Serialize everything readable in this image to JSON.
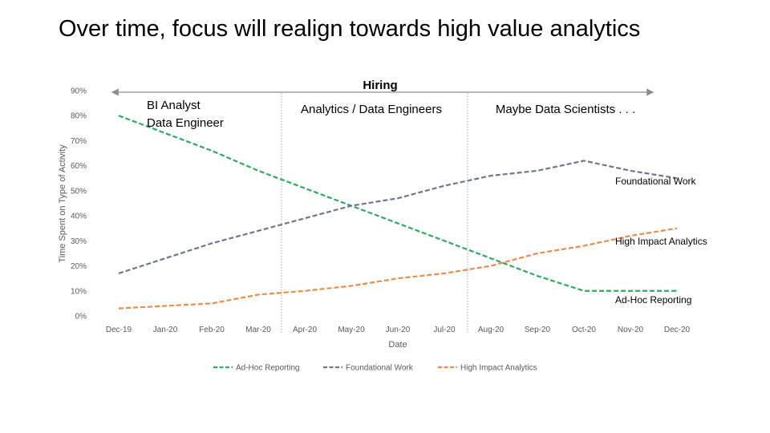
{
  "slide": {
    "title": "Over time, focus will realign towards high value analytics"
  },
  "chart_data": {
    "type": "line",
    "categories": [
      "Dec-19",
      "Jan-20",
      "Feb-20",
      "Mar-20",
      "Apr-20",
      "May-20",
      "Jun-20",
      "Jul-20",
      "Aug-20",
      "Sep-20",
      "Oct-20",
      "Nov-20",
      "Dec-20"
    ],
    "xlabel": "Date",
    "ylabel": "Time Spent on Type of Activity",
    "ylim": [
      0,
      90
    ],
    "yticks": [
      "0%",
      "10%",
      "20%",
      "30%",
      "40%",
      "50%",
      "60%",
      "70%",
      "80%",
      "90%"
    ],
    "grid": false,
    "line_style": "dashed",
    "legend_position": "bottom",
    "series": [
      {
        "name": "Ad-Hoc Reporting",
        "color": "#2eaa62",
        "values": [
          80,
          73,
          66,
          58,
          51,
          44,
          37,
          30,
          23,
          16,
          10,
          10,
          10
        ]
      },
      {
        "name": "Foundational Work",
        "color": "#6e7789",
        "values": [
          17,
          23,
          29,
          34,
          39,
          44,
          47,
          52,
          56,
          58,
          62,
          58,
          55
        ]
      },
      {
        "name": "High Impact Analytics",
        "color": "#ed8b4a",
        "values": [
          3,
          4,
          5,
          8.5,
          10,
          12,
          15,
          17,
          20,
          25,
          28,
          32,
          35
        ]
      }
    ],
    "annotations": {
      "hiring_label": "Hiring",
      "phases": [
        {
          "label_lines": [
            "BI Analyst",
            "Data Engineer"
          ]
        },
        {
          "label_lines": [
            "Analytics / Data Engineers"
          ]
        },
        {
          "label_lines": [
            "Maybe Data Scientists . . ."
          ]
        }
      ],
      "series_labels": [
        "Ad-Hoc Reporting",
        "Foundational Work",
        "High Impact Analytics"
      ]
    }
  }
}
